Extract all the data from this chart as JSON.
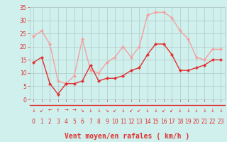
{
  "x": [
    0,
    1,
    2,
    3,
    4,
    5,
    6,
    7,
    8,
    9,
    10,
    11,
    12,
    13,
    14,
    15,
    16,
    17,
    18,
    19,
    20,
    21,
    22,
    23
  ],
  "wind_avg": [
    14,
    16,
    6,
    2,
    6,
    6,
    7,
    13,
    7,
    8,
    8,
    9,
    11,
    12,
    17,
    21,
    21,
    17,
    11,
    11,
    12,
    13,
    15,
    15
  ],
  "wind_gust": [
    24,
    26,
    21,
    7,
    6,
    9,
    23,
    11,
    10,
    14,
    16,
    20,
    16,
    20,
    32,
    33,
    33,
    31,
    26,
    23,
    16,
    15,
    19,
    19
  ],
  "avg_color": "#e03030",
  "gust_color": "#f4a0a0",
  "bg_color": "#cff0ec",
  "grid_color": "#b0c8c8",
  "xlabel": "Vent moyen/en rafales ( km/h )",
  "xlabel_color": "#e03030",
  "tick_color": "#e03030",
  "ylim": [
    0,
    35
  ],
  "yticks": [
    0,
    5,
    10,
    15,
    20,
    25,
    30,
    35
  ],
  "arrow_symbols": [
    "↓",
    "↙",
    "←",
    "↑",
    "→",
    "→",
    "↘",
    "↓",
    "↓",
    "↘",
    "↙",
    "↓",
    "↙",
    "↙",
    "↓",
    "↓",
    "↙",
    "↙",
    "↓",
    "↓",
    "↓",
    "↓",
    "↓",
    "↓"
  ]
}
